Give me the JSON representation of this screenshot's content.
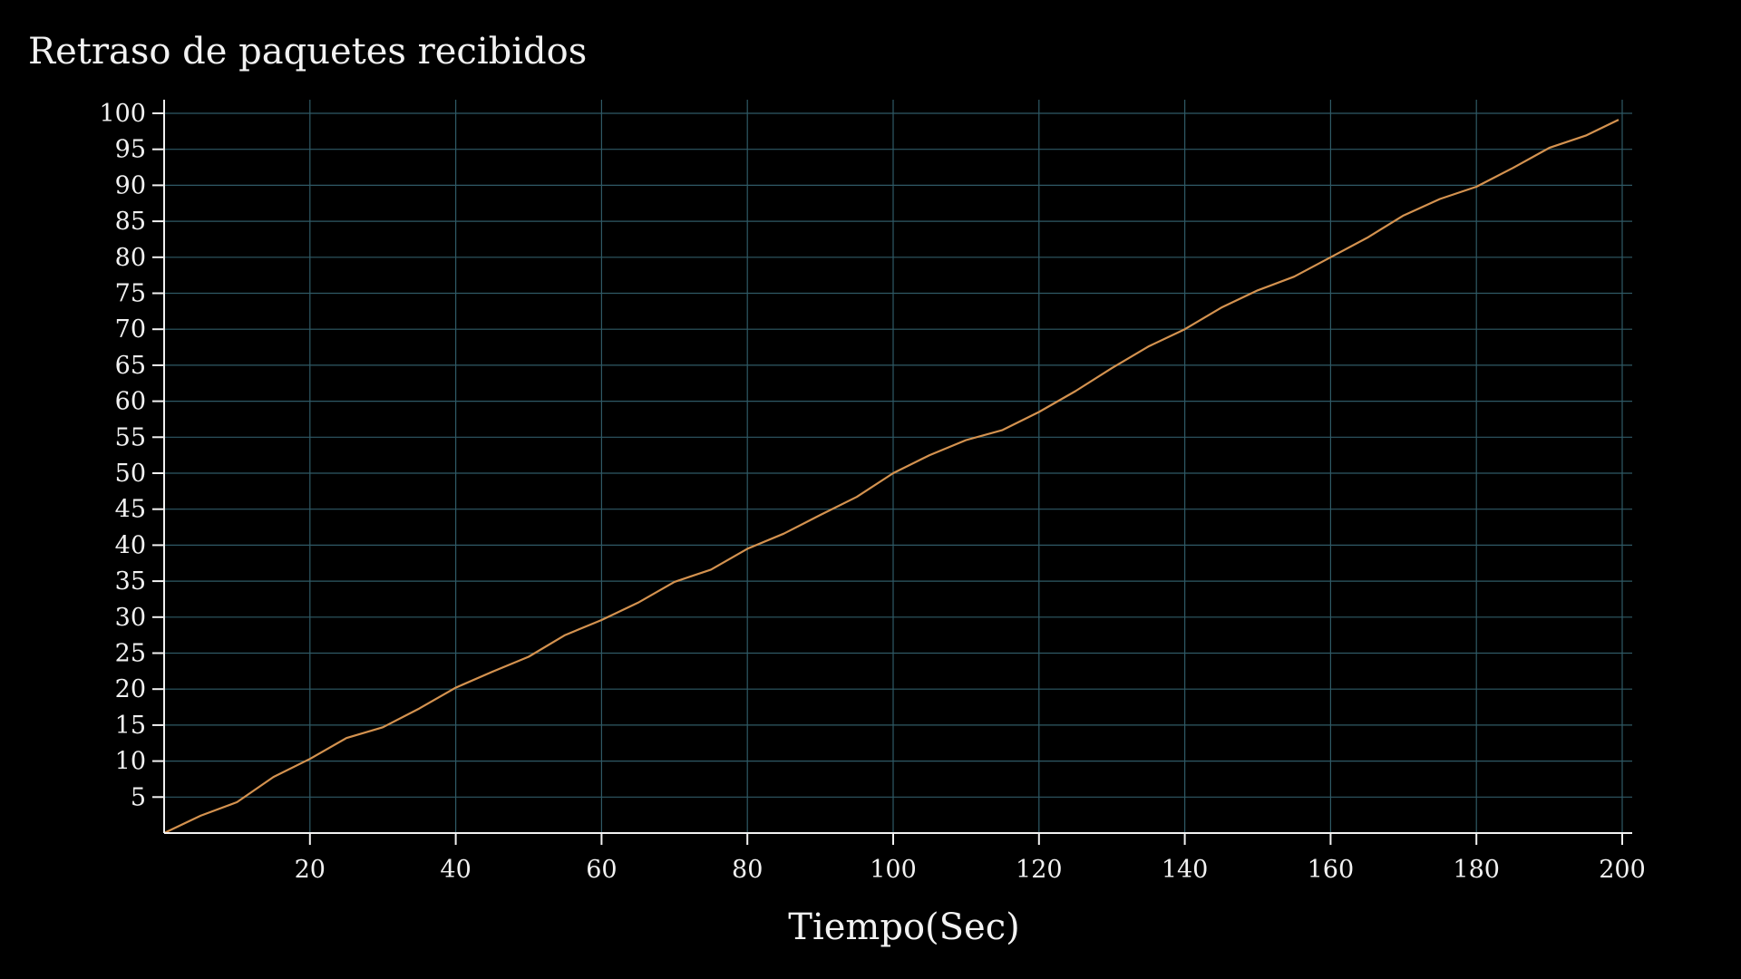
{
  "chart_data": {
    "type": "line",
    "title": "Retraso de paquetes recibidos",
    "xlabel": "Tiempo(Sec)",
    "ylabel": "",
    "xlim": [
      0,
      200
    ],
    "ylim": [
      0,
      100
    ],
    "x_ticks": [
      20,
      40,
      60,
      80,
      100,
      120,
      140,
      160,
      180,
      200
    ],
    "y_ticks": [
      5,
      10,
      15,
      20,
      25,
      30,
      35,
      40,
      45,
      50,
      55,
      60,
      65,
      70,
      75,
      80,
      85,
      90,
      95,
      100
    ],
    "grid": true,
    "series": [
      {
        "color": "#d4924f",
        "x": [
          0,
          5,
          10,
          15,
          20,
          25,
          30,
          35,
          40,
          45,
          50,
          55,
          60,
          65,
          70,
          75,
          80,
          85,
          90,
          95,
          100,
          105,
          110,
          115,
          120,
          125,
          130,
          135,
          140,
          145,
          150,
          155,
          160,
          165,
          170,
          175,
          180,
          185,
          190,
          195,
          199.5
        ],
        "y": [
          0,
          2.4,
          4.3,
          7.8,
          10.3,
          13.2,
          14.7,
          17.3,
          20.2,
          22.4,
          24.5,
          27.5,
          29.6,
          32.0,
          34.9,
          36.6,
          39.5,
          41.6,
          44.2,
          46.7,
          50.0,
          52.5,
          54.6,
          56.0,
          58.5,
          61.4,
          64.6,
          67.6,
          70.0,
          73.0,
          75.4,
          77.3,
          80.0,
          82.7,
          85.8,
          88.1,
          89.8,
          92.4,
          95.2,
          96.9,
          99.1
        ]
      }
    ],
    "colors": {
      "background": "#000000",
      "grid": "#2f5a66",
      "axis": "#f2f2f2",
      "text": "#f2f2f2"
    }
  }
}
